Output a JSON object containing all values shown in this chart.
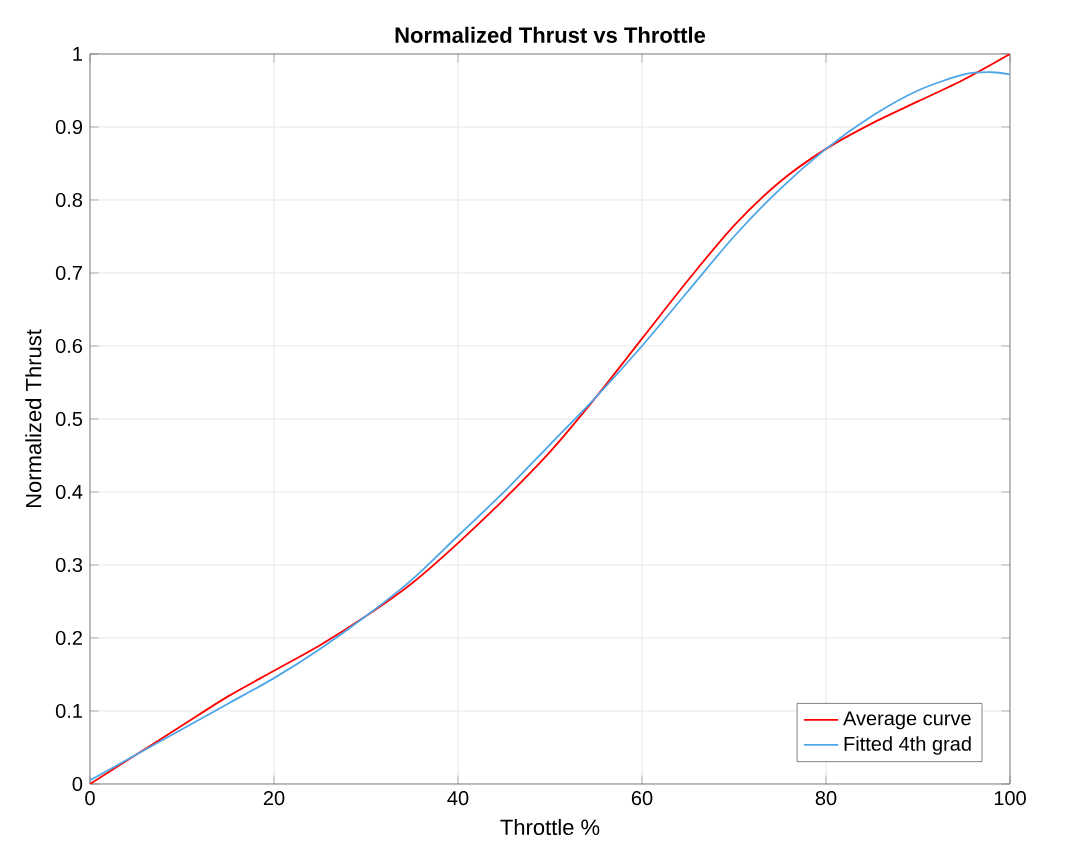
{
  "chart_data": {
    "type": "line",
    "title": "Normalized Thrust vs Throttle",
    "xlabel": "Throttle %",
    "ylabel": "Normalized Thrust",
    "xlim": [
      0,
      100
    ],
    "ylim": [
      0,
      1
    ],
    "xticks": [
      0,
      20,
      40,
      60,
      80,
      100
    ],
    "yticks": [
      0,
      0.1,
      0.2,
      0.3,
      0.4,
      0.5,
      0.6,
      0.7,
      0.8,
      0.9,
      1
    ],
    "grid": true,
    "legend": "bottom right",
    "series": [
      {
        "name": "Average curve",
        "color": "#ff0000",
        "x": [
          0,
          5,
          10,
          15,
          20,
          25,
          30,
          35,
          40,
          45,
          50,
          55,
          60,
          65,
          70,
          75,
          80,
          85,
          90,
          95,
          100
        ],
        "values": [
          0,
          0.04,
          0.08,
          0.12,
          0.155,
          0.19,
          0.23,
          0.275,
          0.33,
          0.39,
          0.455,
          0.53,
          0.61,
          0.69,
          0.765,
          0.825,
          0.87,
          0.905,
          0.935,
          0.965,
          1.0
        ]
      },
      {
        "name": "Fitted 4th grad",
        "color": "#4da6e8",
        "x": [
          0,
          5,
          10,
          15,
          20,
          25,
          30,
          35,
          40,
          45,
          50,
          55,
          60,
          65,
          70,
          75,
          80,
          85,
          90,
          95,
          98,
          100
        ],
        "values": [
          0.005,
          0.04,
          0.075,
          0.11,
          0.145,
          0.185,
          0.23,
          0.28,
          0.34,
          0.4,
          0.465,
          0.53,
          0.6,
          0.675,
          0.75,
          0.815,
          0.87,
          0.915,
          0.95,
          0.972,
          0.975,
          0.972
        ]
      }
    ]
  }
}
